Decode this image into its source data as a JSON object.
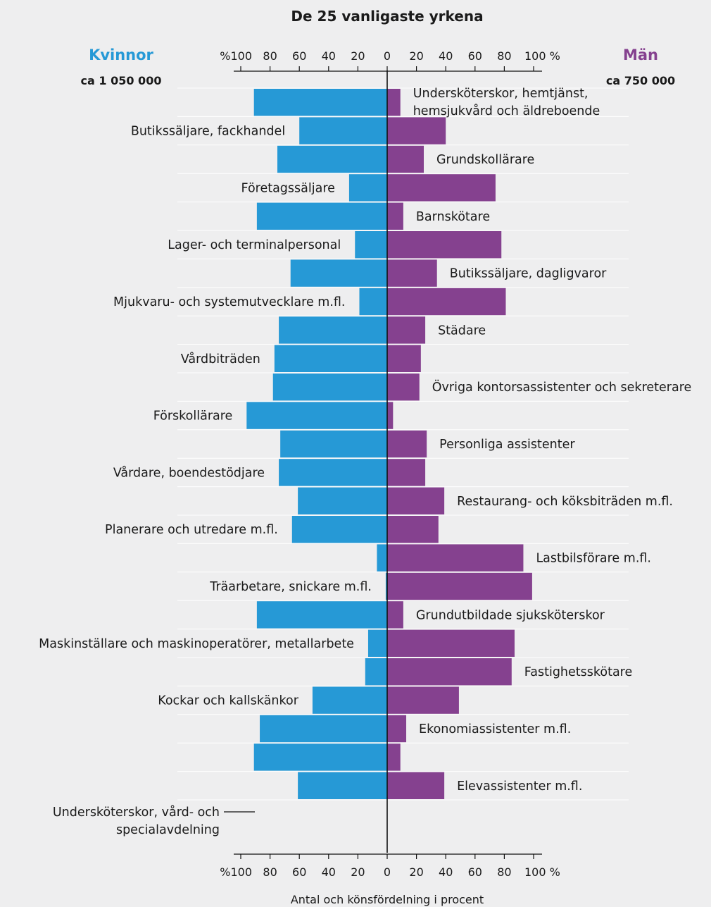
{
  "chart_data": {
    "type": "bar",
    "title": "De 25 vanligaste yrkena",
    "xlabel": "Antal och könsfördelning i procent",
    "left_group": {
      "name": "Kvinnor",
      "total": "ca 1 050 000",
      "color": "#2699d6"
    },
    "right_group": {
      "name": "Män",
      "total": "ca 750 000",
      "color": "#85418f"
    },
    "axis": {
      "left_ticks": [
        "%100",
        "80",
        "60",
        "40",
        "20"
      ],
      "center_tick": "0",
      "right_ticks": [
        "20",
        "40",
        "60",
        "80",
        "100 %"
      ],
      "xlim": [
        -100,
        100
      ]
    },
    "grid": false,
    "occupations": [
      {
        "label": "Undersköterskor, hemtjänst,\nhemsjukvård och äldreboende",
        "women_pct": 91,
        "men_pct": 9
      },
      {
        "label": "Butikssäljare, fackhandel",
        "women_pct": 60,
        "men_pct": 40
      },
      {
        "label": "Grundskollärare",
        "women_pct": 75,
        "men_pct": 25
      },
      {
        "label": "Företagssäljare",
        "women_pct": 26,
        "men_pct": 74
      },
      {
        "label": "Barnskötare",
        "women_pct": 89,
        "men_pct": 11
      },
      {
        "label": "Lager- och terminalpersonal",
        "women_pct": 22,
        "men_pct": 78
      },
      {
        "label": "Butikssäljare, dagligvaror",
        "women_pct": 66,
        "men_pct": 34
      },
      {
        "label": "Mjukvaru- och systemutvecklare m.fl.",
        "women_pct": 19,
        "men_pct": 81
      },
      {
        "label": "Städare",
        "women_pct": 74,
        "men_pct": 26
      },
      {
        "label": "Vårdbiträden",
        "women_pct": 77,
        "men_pct": 23
      },
      {
        "label": "Övriga kontorsassistenter och sekreterare",
        "women_pct": 78,
        "men_pct": 22
      },
      {
        "label": "Förskollärare",
        "women_pct": 96,
        "men_pct": 4
      },
      {
        "label": "Personliga assistenter",
        "women_pct": 73,
        "men_pct": 27
      },
      {
        "label": "Vårdare, boendestödjare",
        "women_pct": 74,
        "men_pct": 26
      },
      {
        "label": "Restaurang- och köksbiträden m.fl.",
        "women_pct": 61,
        "men_pct": 39
      },
      {
        "label": "Planerare och utredare m.fl.",
        "women_pct": 65,
        "men_pct": 35
      },
      {
        "label": "Lastbilsförare m.fl.",
        "women_pct": 7,
        "men_pct": 93
      },
      {
        "label": "Träarbetare, snickare m.fl.",
        "women_pct": 1,
        "men_pct": 99
      },
      {
        "label": "Grundutbildade sjuksköterskor",
        "women_pct": 89,
        "men_pct": 11
      },
      {
        "label": "Maskinställare och maskinoperatörer, metallarbete",
        "women_pct": 13,
        "men_pct": 87
      },
      {
        "label": "Fastighetsskötare",
        "women_pct": 15,
        "men_pct": 85
      },
      {
        "label": "Kockar och kallskänkor",
        "women_pct": 51,
        "men_pct": 49
      },
      {
        "label": "Ekonomiassistenter m.fl.",
        "women_pct": 87,
        "men_pct": 13
      },
      {
        "label": "Undersköterskor, vård- och\nspecialavdelning",
        "women_pct": 91,
        "men_pct": 9
      },
      {
        "label": "Elevassistenter m.fl.",
        "women_pct": 61,
        "men_pct": 39
      }
    ]
  }
}
